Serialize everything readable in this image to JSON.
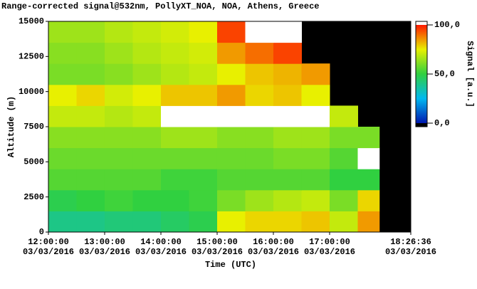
{
  "chart_data": {
    "type": "heatmap",
    "title": "Range-corrected signal@532nm, PollyXT_NOA, NOA, Athens, Greece",
    "xlabel": "Time (UTC)",
    "ylabel": "Altitude (m)",
    "colorbar_label": "Signal [a.u.]",
    "xlim": [
      "2016-03-03T12:00:00",
      "2016-03-03T18:26:36"
    ],
    "xticks": [
      {
        "value": "2016-03-03T12:00:00",
        "label": [
          "12:00:00",
          "03/03/2016"
        ]
      },
      {
        "value": "2016-03-03T13:00:00",
        "label": [
          "13:00:00",
          "03/03/2016"
        ]
      },
      {
        "value": "2016-03-03T14:00:00",
        "label": [
          "14:00:00",
          "03/03/2016"
        ]
      },
      {
        "value": "2016-03-03T15:00:00",
        "label": [
          "15:00:00",
          "03/03/2016"
        ]
      },
      {
        "value": "2016-03-03T16:00:00",
        "label": [
          "16:00:00",
          "03/03/2016"
        ]
      },
      {
        "value": "2016-03-03T17:00:00",
        "label": [
          "17:00:00",
          "03/03/2016"
        ]
      },
      {
        "value": "2016-03-03T18:26:36",
        "label": [
          "18:26:36",
          "03/03/2016"
        ]
      }
    ],
    "ylim": [
      0,
      15000
    ],
    "yticks": [
      0,
      2500,
      5000,
      7500,
      10000,
      12500,
      15000
    ],
    "x_edges": [
      "2016-03-03T12:00:00",
      "2016-03-03T12:30:00",
      "2016-03-03T13:00:00",
      "2016-03-03T13:30:00",
      "2016-03-03T14:00:00",
      "2016-03-03T14:30:00",
      "2016-03-03T15:00:00",
      "2016-03-03T15:30:00",
      "2016-03-03T16:00:00",
      "2016-03-03T16:30:00",
      "2016-03-03T17:00:00",
      "2016-03-03T17:30:00",
      "2016-03-03T17:53:00"
    ],
    "y_edges": [
      0,
      1500,
      3000,
      4500,
      6000,
      7500,
      9000,
      10500,
      12000,
      13500,
      15000
    ],
    "z": [
      [
        40,
        40,
        42,
        42,
        45,
        48,
        75,
        78,
        78,
        80,
        70,
        85
      ],
      [
        48,
        50,
        52,
        50,
        50,
        52,
        60,
        65,
        68,
        70,
        60,
        78
      ],
      [
        55,
        55,
        55,
        55,
        52,
        52,
        55,
        55,
        55,
        55,
        50,
        50
      ],
      [
        58,
        58,
        58,
        58,
        58,
        58,
        58,
        58,
        60,
        60,
        55,
        105
      ],
      [
        62,
        62,
        62,
        62,
        65,
        65,
        62,
        62,
        65,
        65,
        60,
        60
      ],
      [
        70,
        70,
        68,
        70,
        105,
        110,
        105,
        105,
        110,
        105,
        70,
        null
      ],
      [
        75,
        78,
        72,
        75,
        80,
        80,
        85,
        78,
        80,
        75,
        null,
        null
      ],
      [
        60,
        60,
        62,
        65,
        68,
        70,
        75,
        80,
        82,
        85,
        null,
        null
      ],
      [
        62,
        62,
        65,
        68,
        70,
        72,
        85,
        90,
        95,
        null,
        null,
        null
      ],
      [
        65,
        65,
        68,
        70,
        72,
        75,
        95,
        105,
        110,
        null,
        null,
        null
      ]
    ],
    "clim": [
      0,
      100
    ],
    "cticks": [
      {
        "value": 0,
        "label": "0,0"
      },
      {
        "value": 50,
        "label": "50,0"
      },
      {
        "value": 100,
        "label": "100,0"
      }
    ],
    "colormap": [
      "#0018b0",
      "#00b8f0",
      "#30d040",
      "#e8f000",
      "#ff1800"
    ],
    "over_color": "#ffffff",
    "under_color": "#000000",
    "background": "#000000"
  }
}
